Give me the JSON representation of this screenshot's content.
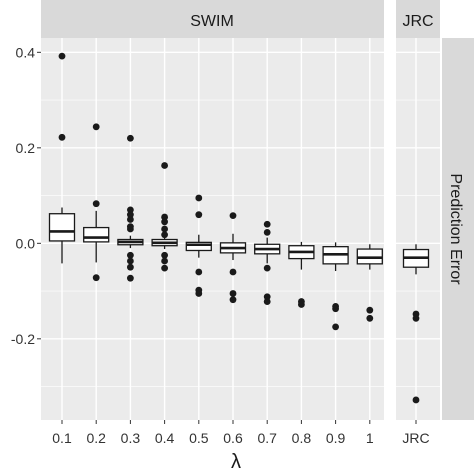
{
  "chart_data": {
    "type": "boxplot",
    "title": "",
    "xlabel": "λ",
    "ylabel": "",
    "facet_strip_right": "Prediction Error",
    "ylim": [
      -0.37,
      0.43
    ],
    "y_ticks": [
      -0.2,
      0.0,
      0.2,
      0.4
    ],
    "y_tick_labels": [
      "-0.2",
      "0.0",
      "0.2",
      "0.4"
    ],
    "grid": true,
    "panels": [
      {
        "title": "SWIM",
        "categories": [
          "0.1",
          "0.2",
          "0.3",
          "0.4",
          "0.5",
          "0.6",
          "0.7",
          "0.8",
          "0.9",
          "1"
        ],
        "boxes": [
          {
            "q1": 0.005,
            "median": 0.025,
            "q3": 0.062,
            "whisker_low": -0.042,
            "whisker_high": 0.075,
            "outliers": [
              0.392,
              0.222
            ]
          },
          {
            "q1": 0.003,
            "median": 0.012,
            "q3": 0.033,
            "whisker_low": -0.04,
            "whisker_high": 0.068,
            "outliers": [
              0.244,
              0.083,
              -0.072
            ]
          },
          {
            "q1": -0.003,
            "median": 0.003,
            "q3": 0.008,
            "whisker_low": -0.01,
            "whisker_high": 0.016,
            "outliers": [
              0.22,
              0.07,
              0.06,
              0.05,
              0.035,
              0.03,
              -0.025,
              -0.037,
              -0.05,
              -0.073
            ]
          },
          {
            "q1": -0.005,
            "median": 0.001,
            "q3": 0.008,
            "whisker_low": -0.012,
            "whisker_high": 0.012,
            "outliers": [
              0.163,
              0.055,
              0.045,
              0.03,
              0.018,
              -0.025,
              -0.037,
              -0.052
            ]
          },
          {
            "q1": -0.015,
            "median": -0.003,
            "q3": 0.002,
            "whisker_low": -0.03,
            "whisker_high": 0.018,
            "outliers": [
              0.095,
              0.06,
              -0.06,
              -0.098,
              -0.105
            ]
          },
          {
            "q1": -0.02,
            "median": -0.01,
            "q3": 0.001,
            "whisker_low": -0.035,
            "whisker_high": 0.02,
            "outliers": [
              0.058,
              -0.06,
              -0.105,
              -0.118
            ]
          },
          {
            "q1": -0.022,
            "median": -0.012,
            "q3": -0.002,
            "whisker_low": -0.042,
            "whisker_high": 0.012,
            "outliers": [
              0.04,
              0.023,
              -0.052,
              -0.112,
              -0.122
            ]
          },
          {
            "q1": -0.032,
            "median": -0.018,
            "q3": -0.005,
            "whisker_low": -0.055,
            "whisker_high": 0.003,
            "outliers": [
              -0.122,
              -0.128
            ]
          },
          {
            "q1": -0.043,
            "median": -0.023,
            "q3": -0.007,
            "whisker_low": -0.058,
            "whisker_high": 0.002,
            "outliers": [
              -0.132,
              -0.137,
              -0.175
            ]
          },
          {
            "q1": -0.043,
            "median": -0.03,
            "q3": -0.012,
            "whisker_low": -0.055,
            "whisker_high": -0.002,
            "outliers": [
              -0.14,
              -0.157
            ]
          }
        ]
      },
      {
        "title": "JRC",
        "categories": [
          "JRC"
        ],
        "boxes": [
          {
            "q1": -0.05,
            "median": -0.03,
            "q3": -0.013,
            "whisker_low": -0.065,
            "whisker_high": -0.002,
            "outliers": [
              -0.148,
              -0.157,
              -0.328
            ]
          }
        ]
      }
    ]
  },
  "colors": {
    "panel_background": "#ebebeb",
    "grid": "#ffffff",
    "strip_background": "#d9d9d9",
    "box_fill": "#ffffff",
    "box_stroke": "#1a1a1a",
    "text": "#333333"
  }
}
